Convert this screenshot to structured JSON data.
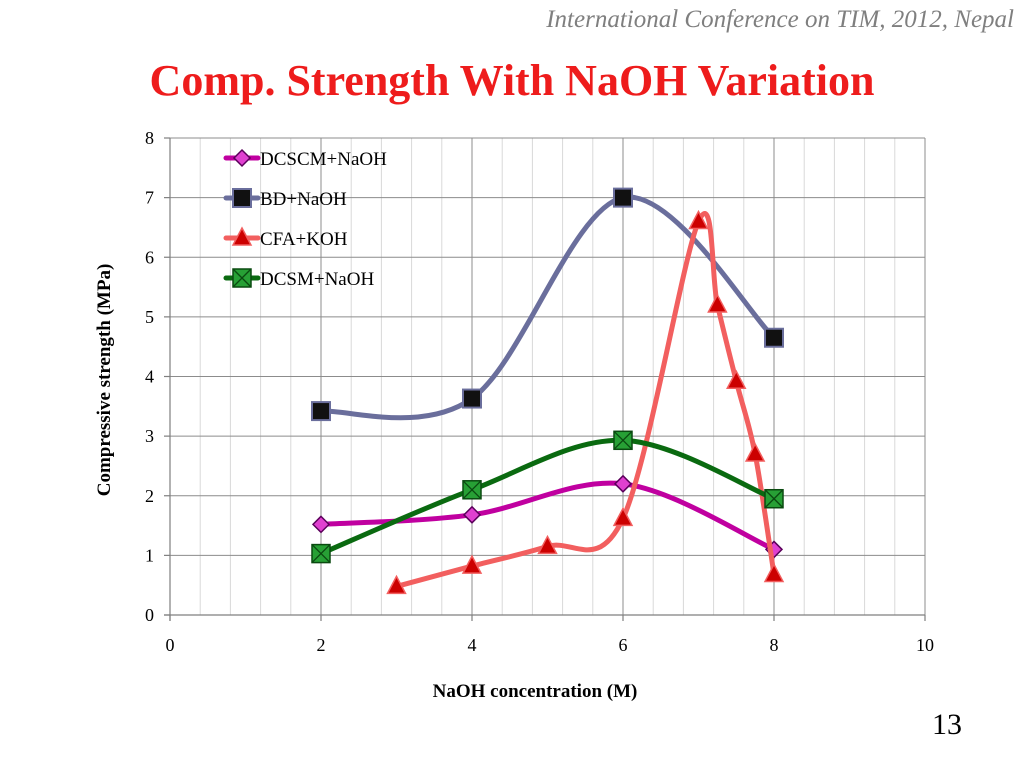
{
  "header": {
    "note": "International Conference on TIM, 2012, Nepal"
  },
  "slide": {
    "title": "Comp. Strength With NaOH Variation",
    "page_number": "13"
  },
  "chart_data": {
    "type": "line",
    "xlabel": "NaOH  concentration (M)",
    "ylabel": "Compressive  strength (MPa)",
    "xlim": [
      0,
      10
    ],
    "ylim": [
      0,
      8
    ],
    "xticks": [
      "0",
      "2",
      "4",
      "6",
      "8",
      "10"
    ],
    "yticks": [
      "0",
      "1",
      "2",
      "3",
      "4",
      "5",
      "6",
      "7",
      "8"
    ],
    "grid": true,
    "smooth": true,
    "legend_position": "top-left",
    "series": [
      {
        "name": "DCSCM+NaOH",
        "color": "#c000a0",
        "marker": "diamond",
        "marker_color": "#e040d0",
        "points": [
          [
            2,
            1.52
          ],
          [
            4,
            1.68
          ],
          [
            6,
            2.2
          ],
          [
            8,
            1.1
          ]
        ]
      },
      {
        "name": "BD+NaOH",
        "color": "#6a6e9c",
        "marker": "square",
        "marker_color": "#111111",
        "points": [
          [
            2,
            3.42
          ],
          [
            4,
            3.63
          ],
          [
            6,
            7.0
          ],
          [
            8,
            4.65
          ]
        ]
      },
      {
        "name": "CFA+KOH",
        "color": "#f25f5f",
        "marker": "triangle",
        "marker_color": "#cc0000",
        "points": [
          [
            3,
            0.48
          ],
          [
            4,
            0.82
          ],
          [
            5,
            1.15
          ],
          [
            6,
            1.62
          ],
          [
            7,
            6.6
          ],
          [
            7.25,
            5.2
          ],
          [
            7.5,
            3.92
          ],
          [
            7.75,
            2.7
          ],
          [
            8,
            0.68
          ]
        ]
      },
      {
        "name": "DCSM+NaOH",
        "color": "#0a6a10",
        "marker": "boxx",
        "marker_color": "#27a035",
        "points": [
          [
            2,
            1.03
          ],
          [
            4,
            2.1
          ],
          [
            6,
            2.93
          ],
          [
            8,
            1.95
          ]
        ]
      }
    ]
  }
}
